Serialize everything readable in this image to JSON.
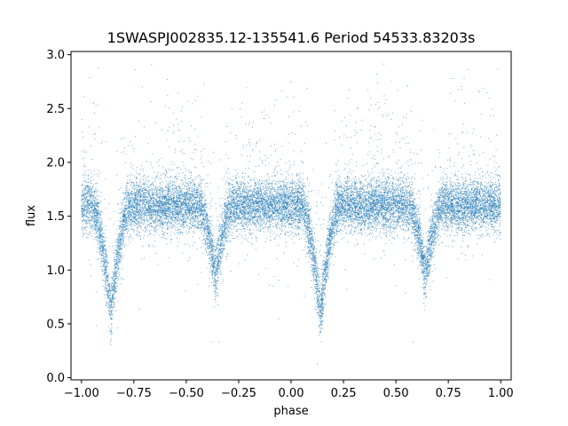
{
  "chart_data": {
    "type": "scatter",
    "title": "1SWASPJ002835.12-135541.6 Period 54533.83203s",
    "xlabel": "phase",
    "ylabel": "flux",
    "xlim": [
      -1.05,
      1.05
    ],
    "ylim": [
      -0.02,
      3.03
    ],
    "x_ticks": [
      -1.0,
      -0.75,
      -0.5,
      -0.25,
      0.0,
      0.25,
      0.5,
      0.75,
      1.0
    ],
    "x_tick_labels": [
      "−1.00",
      "−0.75",
      "−0.50",
      "−0.25",
      "0.00",
      "0.25",
      "0.50",
      "0.75",
      "1.00"
    ],
    "y_ticks": [
      0.0,
      0.5,
      1.0,
      1.5,
      2.0,
      2.5,
      3.0
    ],
    "y_tick_labels": [
      "0.0",
      "0.5",
      "1.0",
      "1.5",
      "2.0",
      "2.5",
      "3.0"
    ],
    "grid": false,
    "marker_color": "#1f77b4",
    "series": [
      {
        "baseline_flux": 1.6,
        "scatter_sigma": 0.12,
        "eclipses": [
          {
            "phase": -0.86,
            "min_flux": 0.6,
            "half_width": 0.09
          },
          {
            "phase": -0.36,
            "min_flux": 0.95,
            "half_width": 0.08
          },
          {
            "phase": 0.14,
            "min_flux": 0.6,
            "half_width": 0.09
          },
          {
            "phase": 0.64,
            "min_flux": 0.95,
            "half_width": 0.08
          }
        ]
      }
    ]
  }
}
